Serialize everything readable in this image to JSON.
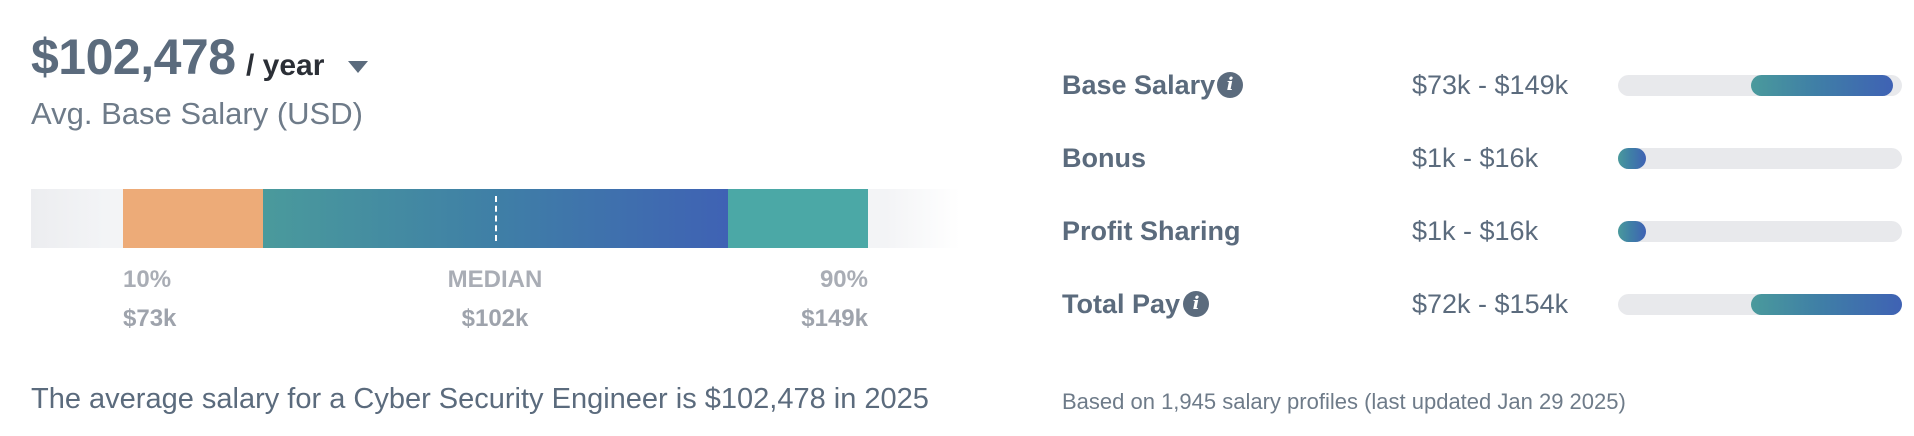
{
  "header": {
    "amount": "$102,478",
    "period": "/ year",
    "subtitle": "Avg. Base Salary (USD)"
  },
  "distribution": {
    "low": {
      "pct": "10%",
      "value": "$73k"
    },
    "median": {
      "pct": "MEDIAN",
      "value": "$102k"
    },
    "high": {
      "pct": "90%",
      "value": "$149k"
    }
  },
  "summary": "The average salary for a Cyber Security Engineer is $102,478 in 2025",
  "breakdown": [
    {
      "label": "Base Salary",
      "range": "$73k - $149k",
      "has_info": true,
      "fill_start": 0.47,
      "fill_end": 0.97
    },
    {
      "label": "Bonus",
      "range": "$1k - $16k",
      "has_info": false,
      "fill_start": 0.0,
      "fill_end": 0.1
    },
    {
      "label": "Profit Sharing",
      "range": "$1k - $16k",
      "has_info": false,
      "fill_start": 0.0,
      "fill_end": 0.1
    },
    {
      "label": "Total Pay",
      "range": "$72k - $154k",
      "has_info": true,
      "fill_start": 0.47,
      "fill_end": 1.0
    }
  ],
  "footnote": "Based on 1,945 salary profiles (last updated Jan 29 2025)",
  "icons": {
    "info": "info-icon",
    "dropdown": "caret-down-icon"
  },
  "colors": {
    "low_segment": "#edab78",
    "high_segment": "#4ba8a6",
    "gradient_start": "#4a9a9c",
    "gradient_end": "#3f62b4",
    "text": "#5b6b7d"
  }
}
